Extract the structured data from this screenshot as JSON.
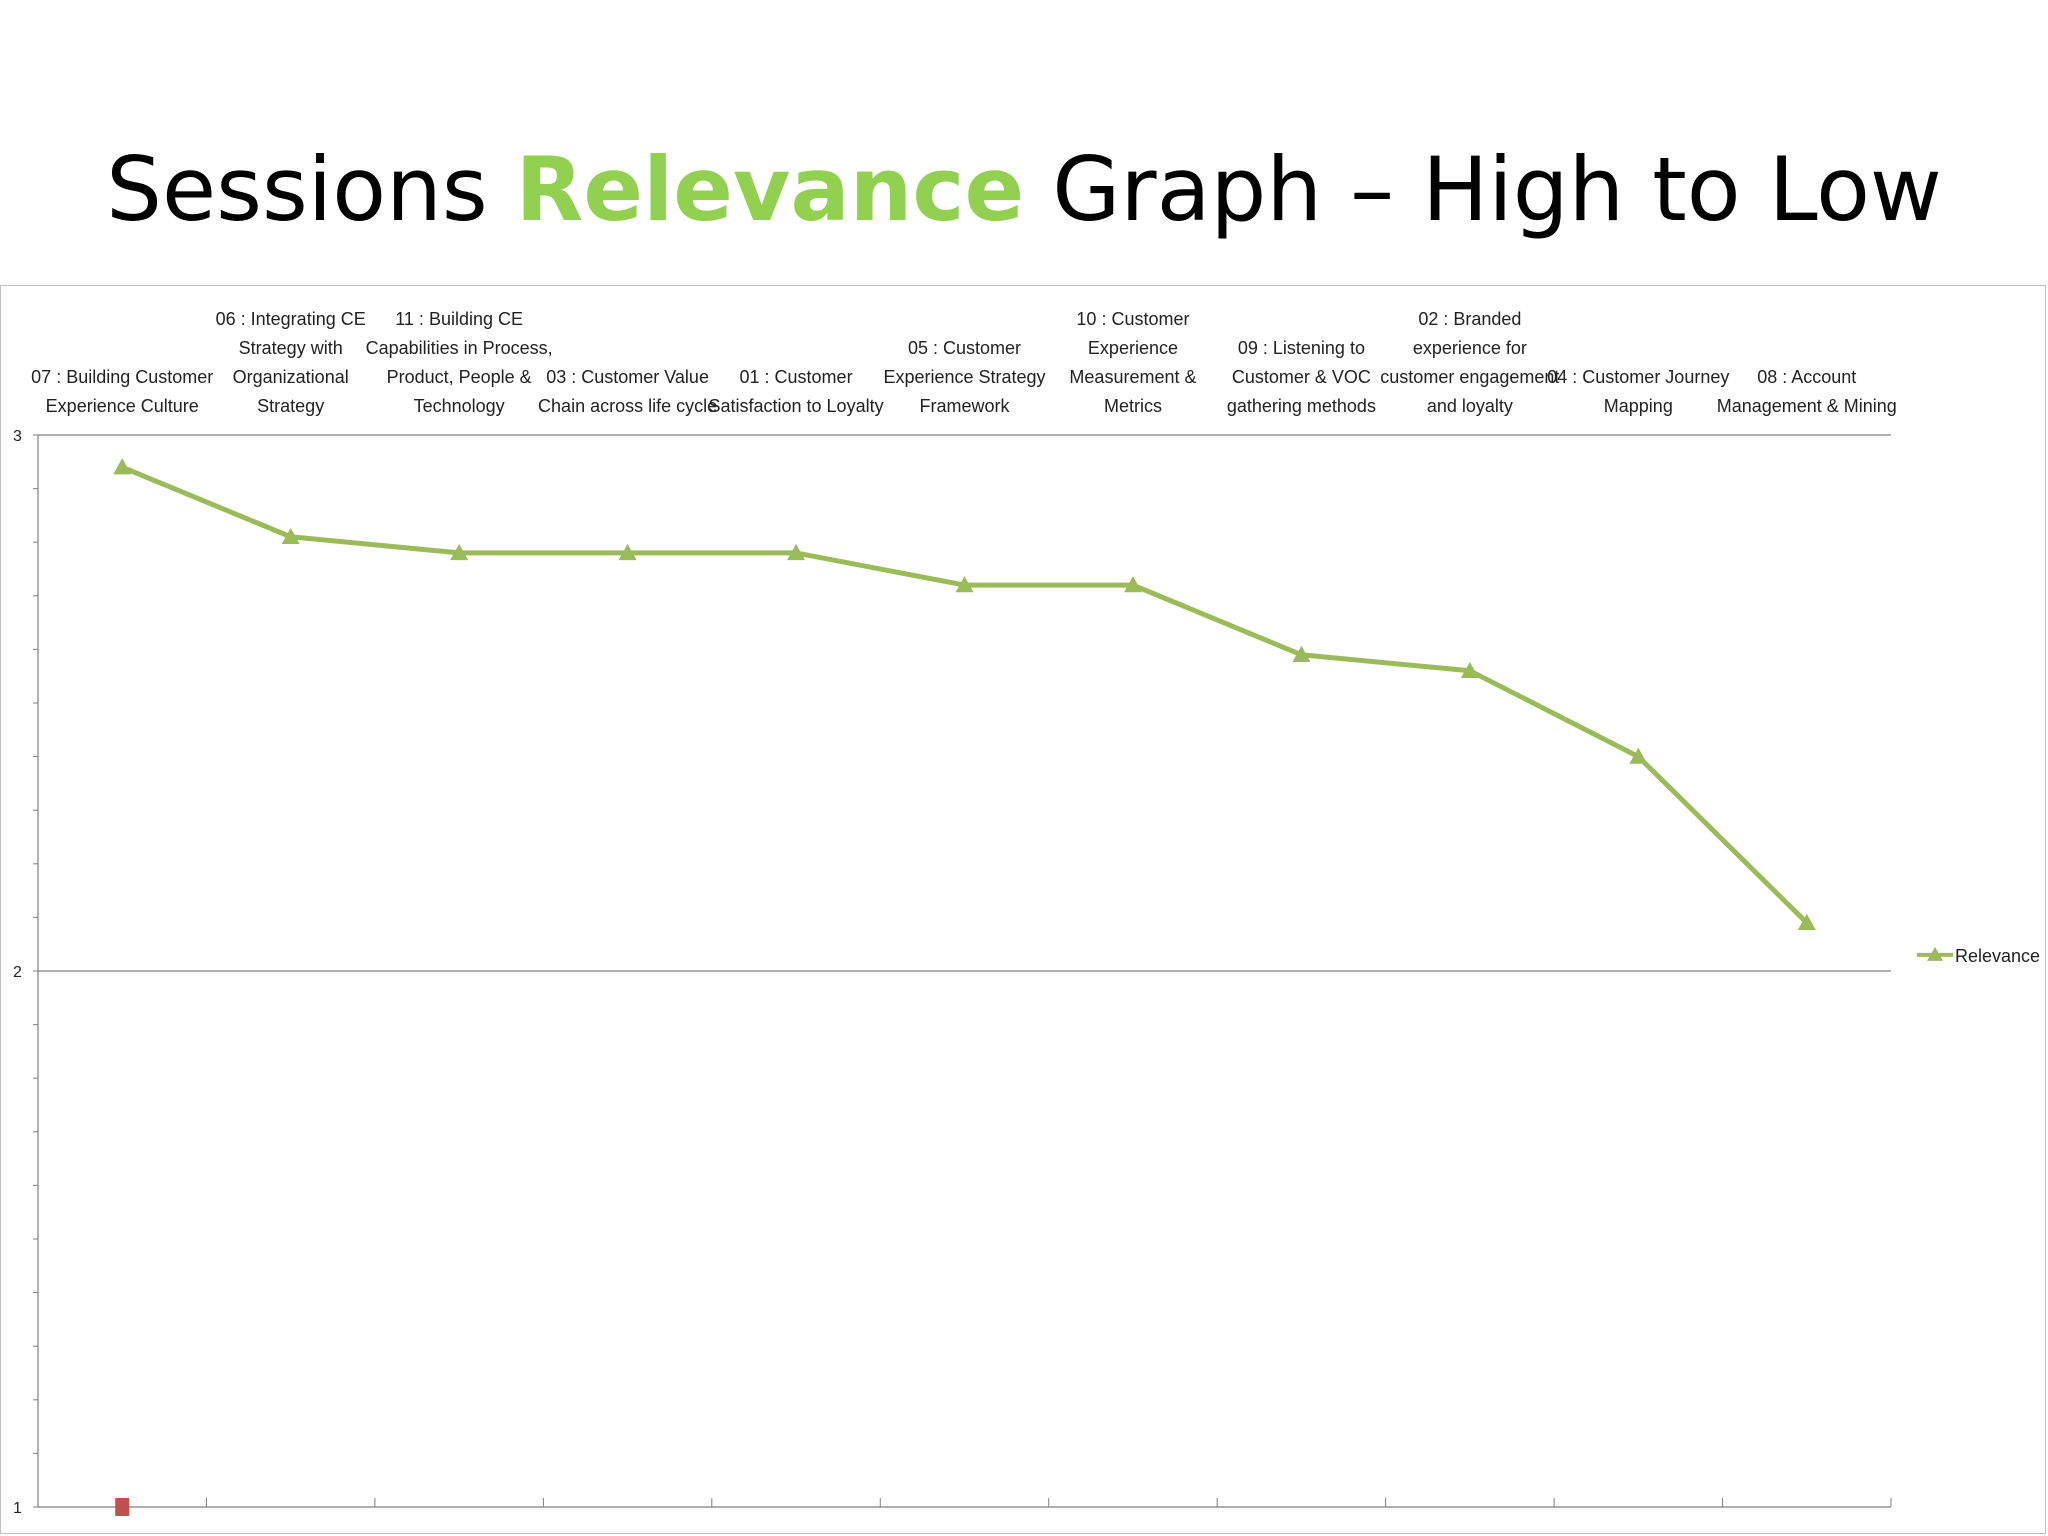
{
  "slide": {
    "title_pre": "Sessions ",
    "title_accent": "Relevance",
    "title_post": " Graph – High to Low",
    "accent_color": "#92d050"
  },
  "chart_data": {
    "type": "line",
    "title": "",
    "xlabel": "",
    "ylabel": "",
    "categories": [
      [
        "07 : Building Customer",
        "Experience Culture"
      ],
      [
        "06 : Integrating CE",
        "Strategy with",
        "Organizational",
        "Strategy"
      ],
      [
        "11 : Building CE",
        "Capabilities in Process,",
        "Product, People &",
        "Technology"
      ],
      [
        "03 : Customer Value",
        "Chain across life cycle"
      ],
      [
        "01 : Customer",
        "Satisfaction to Loyalty"
      ],
      [
        "05 : Customer",
        "Experience Strategy",
        "Framework"
      ],
      [
        "10 : Customer",
        "Experience",
        "Measurement &",
        "Metrics"
      ],
      [
        "09 : Listening to",
        "Customer & VOC",
        "gathering methods"
      ],
      [
        "02 : Branded",
        "experience for",
        "customer engagement",
        "and loyalty"
      ],
      [
        "04 : Customer Journey",
        "Mapping"
      ],
      [
        "08 : Account",
        "Management & Mining"
      ]
    ],
    "series": [
      {
        "name": "Relevance",
        "color": "#9bbb59",
        "marker": "triangle",
        "values": [
          2.94,
          2.81,
          2.78,
          2.78,
          2.78,
          2.72,
          2.72,
          2.59,
          2.56,
          2.4,
          2.09
        ]
      }
    ],
    "stray_marker": {
      "category_index": 0,
      "value": 1,
      "color": "#c0504d",
      "shape": "square"
    },
    "ylim": [
      1,
      3
    ],
    "yticks": [
      "1",
      "2",
      "3"
    ],
    "y_minor_step": 0.1,
    "x_axis_position": "top",
    "gridlines": "major-horizontal",
    "legend": {
      "position": "right",
      "label": "Relevance"
    }
  }
}
